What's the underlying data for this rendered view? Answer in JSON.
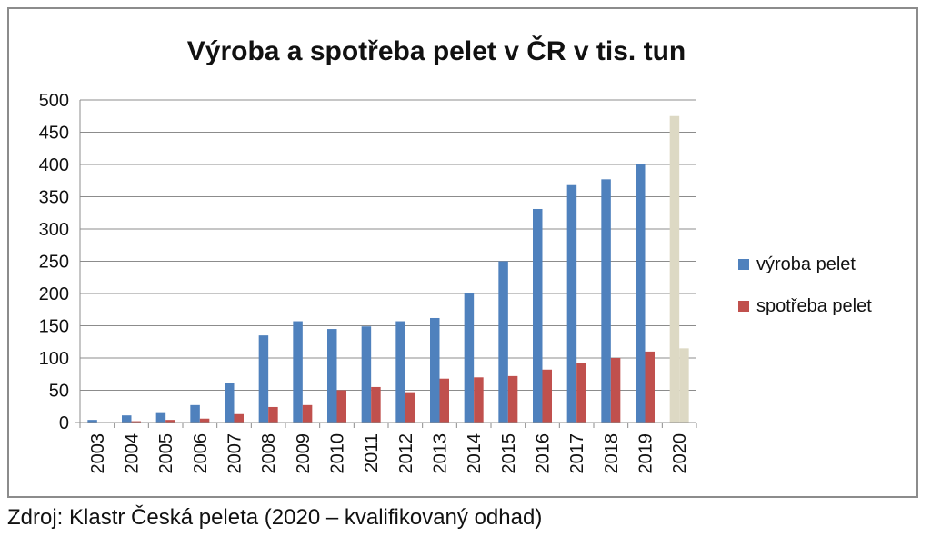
{
  "chart_data": {
    "type": "bar",
    "title": "Výroba a spotřeba pelet v ČR v tis. tun",
    "xlabel": "",
    "ylabel": "",
    "ylim": [
      0,
      500
    ],
    "yticks": [
      "0",
      "50",
      "100",
      "150",
      "200",
      "250",
      "300",
      "350",
      "400",
      "450",
      "500"
    ],
    "grid": true,
    "legend_position": "right",
    "categories": [
      "2003",
      "2004",
      "2005",
      "2006",
      "2007",
      "2008",
      "2009",
      "2010",
      "2011",
      "2012",
      "2013",
      "2014",
      "2015",
      "2016",
      "2017",
      "2018",
      "2019",
      "2020"
    ],
    "series": [
      {
        "name": "výroba pelet",
        "color": "#4f81bd",
        "values": [
          4,
          11,
          16,
          27,
          61,
          135,
          157,
          145,
          149,
          157,
          162,
          200,
          250,
          331,
          368,
          377,
          400,
          475
        ]
      },
      {
        "name": "spotřeba pelet",
        "color": "#c0504d",
        "values": [
          0,
          2,
          4,
          6,
          13,
          24,
          27,
          50,
          55,
          47,
          68,
          70,
          72,
          82,
          92,
          100,
          110,
          115
        ]
      }
    ],
    "estimate_category": "2020",
    "estimate_colors": [
      "#ddd9c4",
      "#ddd9c4"
    ]
  },
  "footer": {
    "source": "Zdroj: Klastr Česká peleta (2020 – kvalifikovaný odhad)"
  }
}
